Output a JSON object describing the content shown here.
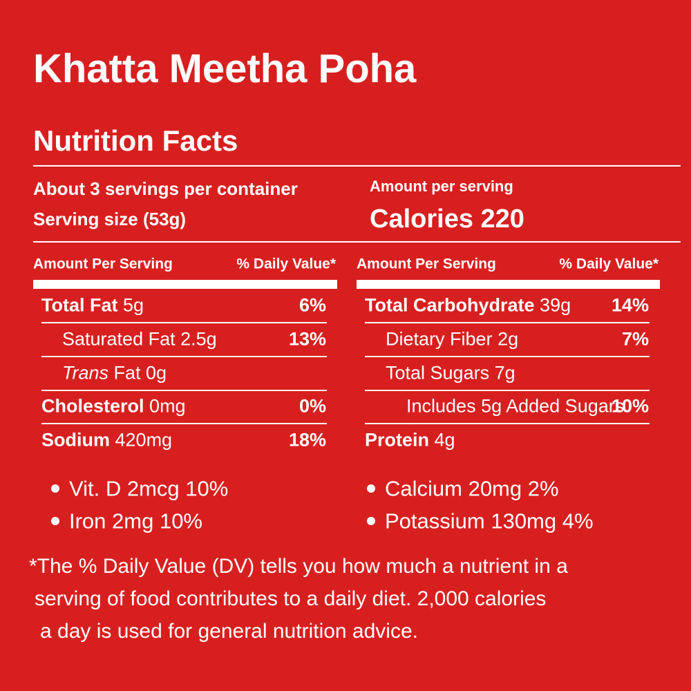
{
  "title": "Khatta Meetha Poha",
  "heading": "Nutrition Facts",
  "servings": {
    "per_container": "About 3 servings per container",
    "size": "Serving size (53g)"
  },
  "calories": {
    "label": "Amount per serving",
    "value": "Calories 220"
  },
  "tables": [
    {
      "header": [
        "Amount Per Serving",
        "% Daily Value*"
      ],
      "rows": [
        {
          "name": "Total Fat",
          "amount": "5g",
          "dv": "6%"
        },
        {
          "name": "Saturated Fat",
          "amount": "2.5g",
          "dv": "13%"
        },
        {
          "name": "Trans",
          "amount": "Fat 0g"
        },
        {
          "name": "Cholesterol",
          "amount": "0mg",
          "dv": "0%"
        },
        {
          "name": "Sodium",
          "amount": "420mg",
          "dv": "18%"
        }
      ]
    },
    {
      "header": [
        "Amount Per Serving",
        "% Daily Value*"
      ],
      "rows": [
        {
          "name": "Total Carbohydrate",
          "amount": "39g",
          "dv": "14%"
        },
        {
          "name": "Dietary Fiber",
          "amount": "2g",
          "dv": "7%"
        },
        {
          "name": "Total Sugars",
          "amount": "7g"
        },
        {
          "name": "Includes 5g Added Sugars",
          "dv": "10%"
        },
        {
          "name": "Protein",
          "amount": "4g"
        }
      ]
    }
  ],
  "vitamins": [
    [
      "Vit. D 2mcg 10%",
      "Iron 2mg 10%"
    ],
    [
      "Calcium 20mg 2%",
      "Potassium 130mg 4%"
    ]
  ],
  "footnote": [
    "*The % Daily Value (DV) tells you how much a nutrient in a",
    "serving of food contributes to a daily diet. 2,000 calories",
    "a day is used for general nutrition advice."
  ]
}
